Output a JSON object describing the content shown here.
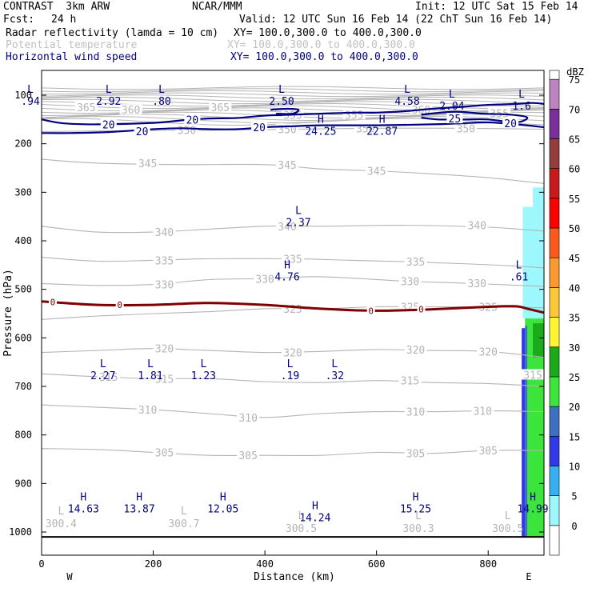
{
  "header": {
    "model_title": "CONTRAST  3km ARW",
    "org": "NCAR/MMM",
    "init": "Init: 12 UTC Sat 15 Feb 14",
    "fcst_label": "Fcst:",
    "fcst_value": "24 h",
    "valid": "Valid: 12 UTC Sun 16 Feb 14 (22 ChT Sun 16 Feb 14)",
    "field1_name": "Radar reflectivity (lamda = 10 cm)",
    "field1_xy": "XY= 100.0,300.0 to 400.0,300.0",
    "field2_name": "Potential temperature",
    "field2_xy": "XY= 100.0,300.0 to 400.0,300.0",
    "field3_name": "Horizontal wind speed",
    "field3_xy": "XY= 100.0,300.0 to 400.0,300.0"
  },
  "colors": {
    "theta": "#b4b4b4",
    "wind": "#000080",
    "zero": "#7f0000"
  },
  "chart_data": {
    "type": "cross-section",
    "xlabel": "Distance (km)",
    "ylabel": "Pressure (hPa)",
    "xlim": [
      0,
      900
    ],
    "ylim": [
      1010,
      85
    ],
    "x_ticks": [
      0,
      200,
      400,
      600,
      800
    ],
    "y_ticks": [
      100,
      200,
      300,
      400,
      500,
      600,
      700,
      800,
      900,
      1000
    ],
    "west_label": "W",
    "east_label": "E",
    "ground_pressure": 1010,
    "theta_contours": [
      {
        "level": 350,
        "label": "350",
        "points": [
          [
            0,
            175
          ],
          [
            150,
            173
          ],
          [
            300,
            172
          ],
          [
            450,
            170
          ],
          [
            600,
            168
          ],
          [
            750,
            168
          ],
          [
            900,
            170
          ]
        ],
        "labels_at": [
          [
            260,
            172
          ],
          [
            440,
            170
          ],
          [
            580,
            168
          ],
          [
            760,
            168
          ]
        ]
      },
      {
        "level": 345,
        "label": "345",
        "points": [
          [
            0,
            232
          ],
          [
            100,
            240
          ],
          [
            250,
            243
          ],
          [
            400,
            243
          ],
          [
            500,
            252
          ],
          [
            600,
            256
          ],
          [
            700,
            262
          ],
          [
            800,
            270
          ],
          [
            900,
            282
          ]
        ],
        "labels_at": [
          [
            190,
            240
          ],
          [
            440,
            243
          ],
          [
            600,
            256
          ]
        ]
      },
      {
        "level": 340,
        "label": "340",
        "points": [
          [
            0,
            370
          ],
          [
            100,
            382
          ],
          [
            200,
            382
          ],
          [
            300,
            376
          ],
          [
            400,
            370
          ],
          [
            500,
            370
          ],
          [
            650,
            368
          ],
          [
            800,
            372
          ],
          [
            900,
            380
          ]
        ],
        "labels_at": [
          [
            220,
            382
          ],
          [
            440,
            370
          ],
          [
            780,
            368
          ]
        ]
      },
      {
        "level": 335,
        "label": "335",
        "points": [
          [
            0,
            434
          ],
          [
            100,
            442
          ],
          [
            200,
            440
          ],
          [
            300,
            437
          ],
          [
            450,
            437
          ],
          [
            550,
            440
          ],
          [
            650,
            443
          ],
          [
            750,
            447
          ],
          [
            850,
            452
          ],
          [
            900,
            456
          ]
        ],
        "labels_at": [
          [
            220,
            440
          ],
          [
            450,
            437
          ],
          [
            670,
            443
          ]
        ]
      },
      {
        "level": 330,
        "label": "330",
        "points": [
          [
            0,
            488
          ],
          [
            100,
            492
          ],
          [
            200,
            490
          ],
          [
            300,
            480
          ],
          [
            400,
            478
          ],
          [
            500,
            474
          ],
          [
            650,
            483
          ],
          [
            750,
            487
          ],
          [
            900,
            494
          ]
        ],
        "labels_at": [
          [
            220,
            490
          ],
          [
            400,
            478
          ],
          [
            660,
            483
          ],
          [
            780,
            487
          ]
        ]
      },
      {
        "level": 325,
        "label": "325",
        "points": [
          [
            0,
            562
          ],
          [
            100,
            555
          ],
          [
            200,
            550
          ],
          [
            300,
            546
          ],
          [
            400,
            540
          ],
          [
            500,
            540
          ],
          [
            600,
            536
          ],
          [
            700,
            536
          ],
          [
            800,
            536
          ],
          [
            900,
            538
          ]
        ],
        "labels_at": [
          [
            450,
            540
          ],
          [
            660,
            536
          ],
          [
            800,
            536
          ]
        ]
      },
      {
        "level": 320,
        "label": "320",
        "points": [
          [
            0,
            630
          ],
          [
            100,
            626
          ],
          [
            200,
            622
          ],
          [
            300,
            626
          ],
          [
            400,
            630
          ],
          [
            500,
            628
          ],
          [
            600,
            624
          ],
          [
            700,
            626
          ],
          [
            800,
            628
          ],
          [
            900,
            640
          ]
        ],
        "labels_at": [
          [
            220,
            622
          ],
          [
            450,
            630
          ],
          [
            670,
            624
          ],
          [
            800,
            628
          ]
        ]
      },
      {
        "level": 315,
        "label": "315",
        "points": [
          [
            0,
            674
          ],
          [
            100,
            680
          ],
          [
            200,
            684
          ],
          [
            300,
            684
          ],
          [
            400,
            690
          ],
          [
            500,
            692
          ],
          [
            600,
            688
          ],
          [
            700,
            692
          ],
          [
            800,
            694
          ],
          [
            900,
            700
          ]
        ],
        "labels_at": [
          [
            120,
            680
          ],
          [
            220,
            684
          ],
          [
            660,
            688
          ],
          [
            880,
            676
          ]
        ]
      },
      {
        "level": 310,
        "label": "310",
        "points": [
          [
            0,
            738
          ],
          [
            100,
            743
          ],
          [
            200,
            748
          ],
          [
            300,
            756
          ],
          [
            400,
            764
          ],
          [
            500,
            756
          ],
          [
            600,
            752
          ],
          [
            700,
            752
          ],
          [
            800,
            750
          ],
          [
            900,
            752
          ]
        ],
        "labels_at": [
          [
            190,
            748
          ],
          [
            370,
            764
          ],
          [
            670,
            752
          ],
          [
            790,
            750
          ]
        ]
      },
      {
        "level": 305,
        "label": "305",
        "points": [
          [
            0,
            828
          ],
          [
            100,
            830
          ],
          [
            200,
            836
          ],
          [
            300,
            842
          ],
          [
            400,
            842
          ],
          [
            500,
            842
          ],
          [
            600,
            836
          ],
          [
            700,
            838
          ],
          [
            800,
            832
          ],
          [
            900,
            832
          ]
        ],
        "labels_at": [
          [
            220,
            836
          ],
          [
            370,
            842
          ],
          [
            670,
            838
          ],
          [
            800,
            832
          ]
        ]
      }
    ],
    "upper_theta_band": {
      "from": 85,
      "to": 155,
      "labels": [
        [
          "365",
          80,
          125
        ],
        [
          "360",
          160,
          130
        ],
        [
          "365",
          320,
          125
        ],
        [
          "355",
          450,
          140
        ],
        [
          "355",
          560,
          140
        ],
        [
          "360",
          680,
          130
        ],
        [
          "355",
          820,
          137
        ]
      ]
    },
    "zero_isotherm": {
      "label": "0",
      "points": [
        [
          0,
          525
        ],
        [
          100,
          532
        ],
        [
          200,
          532
        ],
        [
          300,
          528
        ],
        [
          400,
          532
        ],
        [
          500,
          540
        ],
        [
          600,
          544
        ],
        [
          700,
          541
        ],
        [
          800,
          536
        ],
        [
          850,
          535
        ],
        [
          870,
          540
        ],
        [
          900,
          548
        ]
      ],
      "labels_at": [
        [
          20,
          526
        ],
        [
          140,
          532
        ],
        [
          590,
          544
        ],
        [
          680,
          541
        ]
      ]
    },
    "wind_contours": [
      {
        "label": "20",
        "points": [
          [
            0,
            150
          ],
          [
            40,
            158
          ],
          [
            100,
            160
          ],
          [
            200,
            157
          ],
          [
            250,
            152
          ],
          [
            300,
            148
          ],
          [
            350,
            147
          ],
          [
            400,
            142
          ],
          [
            450,
            140
          ],
          [
            500,
            138
          ],
          [
            560,
            136
          ],
          [
            600,
            136
          ],
          [
            650,
            133
          ],
          [
            700,
            128
          ],
          [
            750,
            124
          ],
          [
            800,
            120
          ],
          [
            850,
            118
          ],
          [
            880,
            116
          ],
          [
            900,
            118
          ]
        ],
        "labels_at": [
          [
            120,
            160
          ],
          [
            270,
            150
          ]
        ]
      },
      {
        "label": "20",
        "points": [
          [
            0,
            178
          ],
          [
            50,
            178
          ],
          [
            120,
            176
          ],
          [
            200,
            170
          ],
          [
            250,
            168
          ],
          [
            300,
            170
          ],
          [
            350,
            170
          ],
          [
            400,
            166
          ],
          [
            450,
            164
          ],
          [
            500,
            162
          ],
          [
            600,
            162
          ],
          [
            700,
            160
          ],
          [
            750,
            158
          ],
          [
            800,
            156
          ],
          [
            850,
            160
          ],
          [
            900,
            166
          ]
        ],
        "labels_at": [
          [
            180,
            174
          ],
          [
            390,
            166
          ],
          [
            840,
            158
          ]
        ]
      },
      {
        "label": "25",
        "points": [
          [
            680,
            140
          ],
          [
            740,
            134
          ],
          [
            790,
            138
          ],
          [
            840,
            140
          ],
          [
            870,
            146
          ],
          [
            850,
            156
          ],
          [
            800,
            150
          ],
          [
            760,
            150
          ],
          [
            710,
            150
          ],
          [
            680,
            146
          ]
        ],
        "labels_at": [
          [
            740,
            148
          ]
        ]
      },
      {
        "label": "",
        "points": [
          [
            410,
            130
          ],
          [
            440,
            128
          ],
          [
            460,
            130
          ],
          [
            450,
            138
          ],
          [
            420,
            138
          ]
        ],
        "labels_at": []
      }
    ],
    "wind_contour_labels_raw": [
      "20",
      "20",
      "20",
      "20",
      "20",
      "25",
      "20"
    ],
    "wind_extrema": [
      {
        "type": "L",
        "value": ".94",
        "x": -20,
        "p": 100
      },
      {
        "type": "L",
        "value": "2.92",
        "x": 120,
        "p": 100
      },
      {
        "type": "L",
        "value": ".80",
        "x": 215,
        "p": 100
      },
      {
        "type": "L",
        "value": "2.50",
        "x": 430,
        "p": 100
      },
      {
        "type": "L",
        "value": "4.58",
        "x": 655,
        "p": 100
      },
      {
        "type": "L",
        "value": "2.04",
        "x": 735,
        "p": 110
      },
      {
        "type": "L",
        "value": "1.6",
        "x": 860,
        "p": 110
      },
      {
        "type": "H",
        "value": "24.25",
        "x": 500,
        "p": 162
      },
      {
        "type": "H",
        "value": "22.87",
        "x": 610,
        "p": 162
      },
      {
        "type": "L",
        "value": "2.37",
        "x": 460,
        "p": 350
      },
      {
        "type": "H",
        "value": "4.76",
        "x": 440,
        "p": 462
      },
      {
        "type": "L",
        "value": ".61",
        "x": 855,
        "p": 462
      },
      {
        "type": "L",
        "value": "2.27",
        "x": 110,
        "p": 665
      },
      {
        "type": "L",
        "value": "1.81",
        "x": 195,
        "p": 665
      },
      {
        "type": "L",
        "value": "1.23",
        "x": 290,
        "p": 665
      },
      {
        "type": "L",
        "value": ".19",
        "x": 445,
        "p": 665
      },
      {
        "type": "L",
        "value": ".32",
        "x": 525,
        "p": 665
      },
      {
        "type": "H",
        "value": "14.63",
        "x": 75,
        "p": 940
      },
      {
        "type": "H",
        "value": "13.87",
        "x": 175,
        "p": 940
      },
      {
        "type": "H",
        "value": "12.05",
        "x": 325,
        "p": 940
      },
      {
        "type": "H",
        "value": "14.24",
        "x": 490,
        "p": 958
      },
      {
        "type": "H",
        "value": "15.25",
        "x": 670,
        "p": 940
      },
      {
        "type": "H",
        "value": "14.99",
        "x": 880,
        "p": 940
      }
    ],
    "theta_extrema": [
      {
        "type": "L",
        "value": "300.4",
        "x": 35,
        "p": 990
      },
      {
        "type": "L",
        "value": "300.7",
        "x": 255,
        "p": 990
      },
      {
        "type": "L",
        "value": "300.5",
        "x": 465,
        "p": 1000
      },
      {
        "type": "L",
        "value": "300.3",
        "x": 675,
        "p": 1000
      },
      {
        "type": "L",
        "value": "300.5",
        "x": 835,
        "p": 1000
      }
    ],
    "reflectivity_region": {
      "x_from": 858,
      "x_to": 900,
      "p_top": 290,
      "p_bottom": 1010,
      "dbz_columns": [
        {
          "x": [
            880,
            900
          ],
          "p": [
            290,
            460
          ],
          "dbz": 5
        },
        {
          "x": [
            862,
            880
          ],
          "p": [
            330,
            460
          ],
          "dbz": 5
        },
        {
          "x": [
            862,
            900
          ],
          "p": [
            460,
            560
          ],
          "dbz": 5
        },
        {
          "x": [
            866,
            900
          ],
          "p": [
            560,
            1010
          ],
          "dbz": 25
        },
        {
          "x": [
            866,
            870
          ],
          "p": [
            575,
            1010
          ],
          "dbz": 20
        },
        {
          "x": [
            860,
            866
          ],
          "p": [
            580,
            1010
          ],
          "dbz": 15
        },
        {
          "x": [
            880,
            900
          ],
          "p": [
            570,
            640
          ],
          "dbz": 30
        }
      ]
    },
    "colorbar": {
      "title": "dBZ",
      "levels": [
        0,
        5,
        10,
        15,
        20,
        25,
        30,
        35,
        40,
        45,
        50,
        55,
        60,
        65,
        70,
        75
      ],
      "colors": [
        "#ffffff",
        "#9cf8fc",
        "#36b0f2",
        "#3338e8",
        "#3c70c0",
        "#3ce53c",
        "#1aaa1a",
        "#fff533",
        "#fdc838",
        "#fa9a2e",
        "#fa5a1e",
        "#ff0000",
        "#c81a1a",
        "#963c3c",
        "#7c2e9a",
        "#bc84c0"
      ]
    }
  }
}
